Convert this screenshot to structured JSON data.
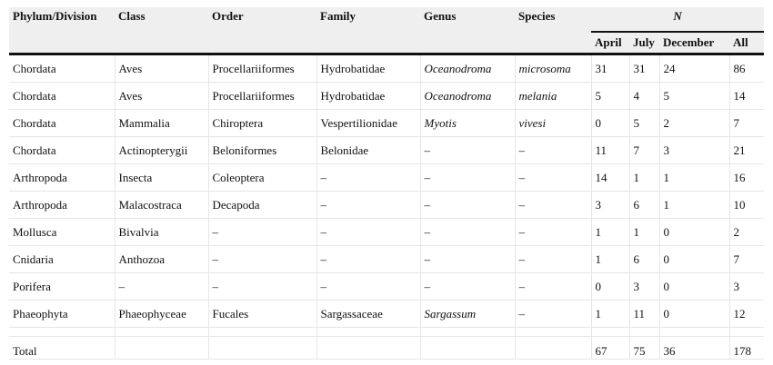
{
  "table": {
    "headers": {
      "phylum": "Phylum/Division",
      "class": "Class",
      "order": "Order",
      "family": "Family",
      "genus": "Genus",
      "species": "Species",
      "n_group": "N",
      "april": "April",
      "july": "July",
      "december": "December",
      "all": "All"
    },
    "rows": [
      {
        "phylum": "Chordata",
        "class": "Aves",
        "order": "Procellariiformes",
        "family": "Hydrobatidae",
        "genus": "Oceanodroma",
        "species": "microsoma",
        "april": "31",
        "july": "31",
        "december": "24",
        "all": "86"
      },
      {
        "phylum": "Chordata",
        "class": "Aves",
        "order": "Procellariiformes",
        "family": "Hydrobatidae",
        "genus": "Oceanodroma",
        "species": "melania",
        "april": "5",
        "july": "4",
        "december": "5",
        "all": "14"
      },
      {
        "phylum": "Chordata",
        "class": "Mammalia",
        "order": "Chiroptera",
        "family": "Vespertilionidae",
        "genus": "Myotis",
        "species": "vivesi",
        "april": "0",
        "july": "5",
        "december": "2",
        "all": "7"
      },
      {
        "phylum": "Chordata",
        "class": "Actinopterygii",
        "order": "Beloniformes",
        "family": "Belonidae",
        "genus": "–",
        "species": "–",
        "april": "11",
        "july": "7",
        "december": "3",
        "all": "21"
      },
      {
        "phylum": "Arthropoda",
        "class": "Insecta",
        "order": "Coleoptera",
        "family": "–",
        "genus": "–",
        "species": "–",
        "april": "14",
        "july": "1",
        "december": "1",
        "all": "16"
      },
      {
        "phylum": "Arthropoda",
        "class": "Malacostraca",
        "order": "Decapoda",
        "family": "–",
        "genus": "–",
        "species": "–",
        "april": "3",
        "july": "6",
        "december": "1",
        "all": "10"
      },
      {
        "phylum": "Mollusca",
        "class": "Bivalvia",
        "order": "–",
        "family": "–",
        "genus": "–",
        "species": "–",
        "april": "1",
        "july": "1",
        "december": "0",
        "all": "2"
      },
      {
        "phylum": "Cnidaria",
        "class": "Anthozoa",
        "order": "–",
        "family": "–",
        "genus": "–",
        "species": "–",
        "april": "1",
        "july": "6",
        "december": "0",
        "all": "7"
      },
      {
        "phylum": "Porifera",
        "class": "–",
        "order": "–",
        "family": "–",
        "genus": "–",
        "species": "–",
        "april": "0",
        "july": "3",
        "december": "0",
        "all": "3"
      },
      {
        "phylum": "Phaeophyta",
        "class": "Phaeophyceae",
        "order": "Fucales",
        "family": "Sargassaceae",
        "genus": "Sargassum",
        "species": "–",
        "april": "1",
        "july": "11",
        "december": "0",
        "all": "12"
      }
    ],
    "total": {
      "label": "Total",
      "april": "67",
      "july": "75",
      "december": "36",
      "all": "178"
    }
  }
}
